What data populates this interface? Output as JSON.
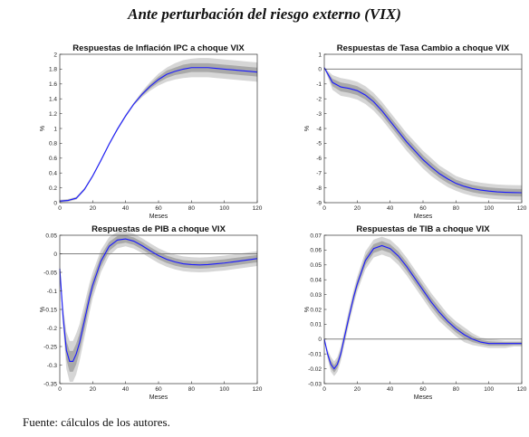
{
  "title": "Ante perturbación del riesgo externo (VIX)",
  "source": "Fuente: cálculos de los autores.",
  "colors": {
    "line": "#1a1aff",
    "band_outer": "#d6d6d6",
    "band_inner": "#a9a9a9",
    "zero": "#808080"
  },
  "chart_data": [
    {
      "type": "line",
      "title": "Respuestas de Inflación IPC a choque VIX",
      "xlabel": "Meses",
      "ylabel": "%",
      "xlim": [
        0,
        120
      ],
      "ylim": [
        0,
        2
      ],
      "xticks": [
        0,
        20,
        40,
        60,
        80,
        100,
        120
      ],
      "yticks": [
        0,
        0.2,
        0.4,
        0.6,
        0.8,
        1,
        1.2,
        1.4,
        1.6,
        1.8,
        2
      ],
      "ytick_labels": [
        "0",
        "0.2",
        "0.4",
        "0.6",
        "0.8",
        "1",
        "1.2",
        "1.4",
        "1.6",
        "1.8",
        "2"
      ],
      "zero_line": false,
      "x": [
        0,
        5,
        10,
        15,
        20,
        25,
        30,
        35,
        40,
        45,
        50,
        55,
        60,
        65,
        70,
        75,
        80,
        85,
        90,
        95,
        100,
        105,
        110,
        115,
        120
      ],
      "value": [
        0.02,
        0.03,
        0.06,
        0.18,
        0.36,
        0.57,
        0.79,
        0.99,
        1.17,
        1.33,
        1.46,
        1.57,
        1.66,
        1.73,
        1.77,
        1.8,
        1.82,
        1.82,
        1.82,
        1.81,
        1.8,
        1.79,
        1.78,
        1.77,
        1.76
      ],
      "band_lower": [
        0.0,
        0.01,
        0.04,
        0.16,
        0.34,
        0.55,
        0.77,
        0.97,
        1.15,
        1.31,
        1.42,
        1.51,
        1.58,
        1.63,
        1.66,
        1.68,
        1.69,
        1.69,
        1.69,
        1.68,
        1.67,
        1.66,
        1.65,
        1.64,
        1.63
      ],
      "band_upper": [
        0.04,
        0.05,
        0.08,
        0.2,
        0.38,
        0.59,
        0.81,
        1.01,
        1.19,
        1.35,
        1.5,
        1.63,
        1.74,
        1.82,
        1.88,
        1.92,
        1.94,
        1.95,
        1.95,
        1.94,
        1.93,
        1.92,
        1.91,
        1.9,
        1.89
      ],
      "band_lower_inner": [
        0.01,
        0.02,
        0.05,
        0.17,
        0.35,
        0.56,
        0.78,
        0.98,
        1.16,
        1.32,
        1.44,
        1.54,
        1.62,
        1.68,
        1.72,
        1.74,
        1.76,
        1.76,
        1.76,
        1.75,
        1.74,
        1.73,
        1.72,
        1.71,
        1.7
      ],
      "band_upper_inner": [
        0.03,
        0.04,
        0.07,
        0.19,
        0.37,
        0.58,
        0.8,
        1.0,
        1.18,
        1.34,
        1.48,
        1.6,
        1.7,
        1.78,
        1.82,
        1.86,
        1.88,
        1.88,
        1.88,
        1.87,
        1.86,
        1.85,
        1.84,
        1.83,
        1.82
      ]
    },
    {
      "type": "line",
      "title": "Respuestas de Tasa Cambio a choque VIX",
      "xlabel": "Meses",
      "ylabel": "%",
      "xlim": [
        0,
        120
      ],
      "ylim": [
        -9,
        1
      ],
      "xticks": [
        0,
        20,
        40,
        60,
        80,
        100,
        120
      ],
      "yticks": [
        -9,
        -8,
        -7,
        -6,
        -5,
        -4,
        -3,
        -2,
        -1,
        0,
        1
      ],
      "ytick_labels": [
        "-9",
        "-8",
        "-7",
        "-6",
        "-5",
        "-4",
        "-3",
        "-2",
        "-1",
        "0",
        "1"
      ],
      "zero_line": true,
      "x": [
        0,
        2,
        5,
        10,
        15,
        20,
        25,
        30,
        35,
        40,
        45,
        50,
        55,
        60,
        65,
        70,
        75,
        80,
        85,
        90,
        95,
        100,
        105,
        110,
        115,
        120
      ],
      "value": [
        0.1,
        -0.3,
        -0.9,
        -1.2,
        -1.3,
        -1.45,
        -1.75,
        -2.2,
        -2.8,
        -3.5,
        -4.2,
        -4.9,
        -5.5,
        -6.1,
        -6.6,
        -7.05,
        -7.4,
        -7.7,
        -7.9,
        -8.05,
        -8.15,
        -8.22,
        -8.27,
        -8.3,
        -8.32,
        -8.33
      ],
      "band_lower": [
        0.05,
        -0.5,
        -1.4,
        -1.8,
        -1.9,
        -2.05,
        -2.35,
        -2.8,
        -3.4,
        -4.1,
        -4.8,
        -5.5,
        -6.1,
        -6.7,
        -7.2,
        -7.6,
        -7.95,
        -8.2,
        -8.4,
        -8.55,
        -8.65,
        -8.72,
        -8.77,
        -8.8,
        -8.82,
        -8.83
      ],
      "band_upper": [
        0.15,
        -0.1,
        -0.4,
        -0.6,
        -0.7,
        -0.85,
        -1.15,
        -1.6,
        -2.2,
        -2.9,
        -3.6,
        -4.3,
        -4.9,
        -5.5,
        -6.0,
        -6.5,
        -6.85,
        -7.2,
        -7.4,
        -7.55,
        -7.65,
        -7.72,
        -7.77,
        -7.8,
        -7.82,
        -7.83
      ],
      "band_lower_inner": [
        0.08,
        -0.4,
        -1.15,
        -1.5,
        -1.6,
        -1.75,
        -2.05,
        -2.5,
        -3.1,
        -3.8,
        -4.5,
        -5.2,
        -5.8,
        -6.4,
        -6.9,
        -7.33,
        -7.68,
        -7.95,
        -8.15,
        -8.3,
        -8.4,
        -8.47,
        -8.52,
        -8.55,
        -8.57,
        -8.58
      ],
      "band_upper_inner": [
        0.12,
        -0.2,
        -0.65,
        -0.9,
        -1.0,
        -1.15,
        -1.45,
        -1.9,
        -2.5,
        -3.2,
        -3.9,
        -4.6,
        -5.2,
        -5.8,
        -6.3,
        -6.77,
        -7.12,
        -7.45,
        -7.65,
        -7.8,
        -7.9,
        -7.97,
        -8.02,
        -8.05,
        -8.07,
        -8.08
      ]
    },
    {
      "type": "line",
      "title": "Respuestas de PIB a choque VIX",
      "xlabel": "Meses",
      "ylabel": "%",
      "xlim": [
        0,
        120
      ],
      "ylim": [
        -0.35,
        0.05
      ],
      "xticks": [
        0,
        20,
        40,
        60,
        80,
        100,
        120
      ],
      "yticks": [
        -0.35,
        -0.3,
        -0.25,
        -0.2,
        -0.15,
        -0.1,
        -0.05,
        0,
        0.05
      ],
      "ytick_labels": [
        "-0.35",
        "-0.3",
        "-0.25",
        "-0.2",
        "-0.15",
        "-0.1",
        "-0.05",
        "0",
        "0.05"
      ],
      "zero_line": true,
      "x": [
        0,
        2,
        4,
        6,
        8,
        10,
        12,
        15,
        18,
        20,
        25,
        30,
        35,
        40,
        45,
        50,
        55,
        60,
        65,
        70,
        75,
        80,
        85,
        90,
        95,
        100,
        105,
        110,
        115,
        120
      ],
      "value": [
        -0.04,
        -0.17,
        -0.26,
        -0.29,
        -0.29,
        -0.27,
        -0.24,
        -0.18,
        -0.12,
        -0.085,
        -0.02,
        0.02,
        0.037,
        0.04,
        0.034,
        0.022,
        0.008,
        -0.005,
        -0.015,
        -0.022,
        -0.027,
        -0.029,
        -0.03,
        -0.029,
        -0.027,
        -0.025,
        -0.022,
        -0.019,
        -0.016,
        -0.013
      ],
      "band_lower": [
        -0.05,
        -0.2,
        -0.31,
        -0.345,
        -0.345,
        -0.325,
        -0.29,
        -0.225,
        -0.16,
        -0.12,
        -0.05,
        -0.005,
        0.015,
        0.02,
        0.014,
        0.002,
        -0.012,
        -0.025,
        -0.035,
        -0.042,
        -0.047,
        -0.049,
        -0.05,
        -0.049,
        -0.047,
        -0.045,
        -0.042,
        -0.039,
        -0.036,
        -0.033
      ],
      "band_upper": [
        -0.03,
        -0.14,
        -0.21,
        -0.235,
        -0.235,
        -0.215,
        -0.19,
        -0.135,
        -0.08,
        -0.05,
        0.01,
        0.045,
        0.059,
        0.06,
        0.054,
        0.042,
        0.028,
        0.015,
        0.005,
        -0.002,
        -0.007,
        -0.009,
        -0.01,
        -0.009,
        -0.007,
        -0.005,
        -0.002,
        0.001,
        0.004,
        0.007
      ],
      "band_lower_inner": [
        -0.045,
        -0.185,
        -0.285,
        -0.318,
        -0.318,
        -0.298,
        -0.265,
        -0.203,
        -0.14,
        -0.103,
        -0.035,
        0.008,
        0.026,
        0.03,
        0.024,
        0.012,
        -0.002,
        -0.015,
        -0.025,
        -0.032,
        -0.037,
        -0.039,
        -0.04,
        -0.039,
        -0.037,
        -0.035,
        -0.032,
        -0.029,
        -0.026,
        -0.023
      ],
      "band_upper_inner": [
        -0.035,
        -0.155,
        -0.235,
        -0.262,
        -0.262,
        -0.242,
        -0.215,
        -0.157,
        -0.1,
        -0.067,
        -0.005,
        0.032,
        0.048,
        0.05,
        0.044,
        0.032,
        0.018,
        0.005,
        -0.005,
        -0.012,
        -0.017,
        -0.019,
        -0.02,
        -0.019,
        -0.017,
        -0.015,
        -0.012,
        -0.009,
        -0.006,
        -0.003
      ]
    },
    {
      "type": "line",
      "title": "Respuestas de TIB a choque VIX",
      "xlabel": "Meses",
      "ylabel": "%",
      "xlim": [
        0,
        120
      ],
      "ylim": [
        -0.03,
        0.07
      ],
      "xticks": [
        0,
        20,
        40,
        60,
        80,
        100,
        120
      ],
      "yticks": [
        -0.03,
        -0.02,
        -0.01,
        0,
        0.01,
        0.02,
        0.03,
        0.04,
        0.05,
        0.06,
        0.07
      ],
      "ytick_labels": [
        "-0.03",
        "-0.02",
        "-0.01",
        "0",
        "0.01",
        "0.02",
        "0.03",
        "0.04",
        "0.05",
        "0.06",
        "0.07"
      ],
      "zero_line": true,
      "x": [
        0,
        2,
        4,
        6,
        8,
        10,
        12,
        15,
        18,
        20,
        25,
        30,
        35,
        40,
        45,
        50,
        55,
        60,
        65,
        70,
        75,
        80,
        85,
        90,
        95,
        100,
        105,
        110,
        115,
        120
      ],
      "value": [
        0,
        -0.01,
        -0.017,
        -0.02,
        -0.017,
        -0.01,
        0.0,
        0.015,
        0.029,
        0.037,
        0.053,
        0.061,
        0.063,
        0.061,
        0.056,
        0.049,
        0.041,
        0.033,
        0.025,
        0.018,
        0.012,
        0.007,
        0.003,
        0.0,
        -0.002,
        -0.003,
        -0.003,
        -0.003,
        -0.003,
        -0.003
      ],
      "band_lower": [
        0,
        -0.013,
        -0.022,
        -0.025,
        -0.022,
        -0.015,
        -0.005,
        0.01,
        0.024,
        0.032,
        0.047,
        0.055,
        0.057,
        0.055,
        0.05,
        0.043,
        0.035,
        0.027,
        0.019,
        0.012,
        0.007,
        0.002,
        -0.002,
        -0.004,
        -0.005,
        -0.006,
        -0.006,
        -0.006,
        -0.005,
        -0.005
      ],
      "band_upper": [
        0,
        -0.007,
        -0.012,
        -0.015,
        -0.012,
        -0.005,
        0.005,
        0.02,
        0.034,
        0.042,
        0.059,
        0.067,
        0.069,
        0.067,
        0.062,
        0.055,
        0.047,
        0.039,
        0.031,
        0.024,
        0.017,
        0.012,
        0.008,
        0.004,
        0.001,
        0.0,
        -0.0005,
        -0.001,
        -0.001,
        -0.001
      ],
      "band_lower_inner": [
        0,
        -0.0115,
        -0.0195,
        -0.0225,
        -0.0195,
        -0.0125,
        -0.0025,
        0.0125,
        0.0265,
        0.0345,
        0.05,
        0.058,
        0.06,
        0.058,
        0.053,
        0.046,
        0.038,
        0.03,
        0.022,
        0.015,
        0.0095,
        0.0045,
        0.0005,
        -0.002,
        -0.0035,
        -0.0045,
        -0.0045,
        -0.0045,
        -0.004,
        -0.004
      ],
      "band_upper_inner": [
        0,
        -0.0085,
        -0.0145,
        -0.0175,
        -0.0145,
        -0.0075,
        0.0025,
        0.0175,
        0.0315,
        0.0395,
        0.056,
        0.064,
        0.066,
        0.064,
        0.059,
        0.052,
        0.044,
        0.036,
        0.028,
        0.021,
        0.0145,
        0.0095,
        0.0055,
        0.002,
        -0.0005,
        -0.0015,
        -0.0018,
        -0.002,
        -0.002,
        -0.002
      ]
    }
  ]
}
